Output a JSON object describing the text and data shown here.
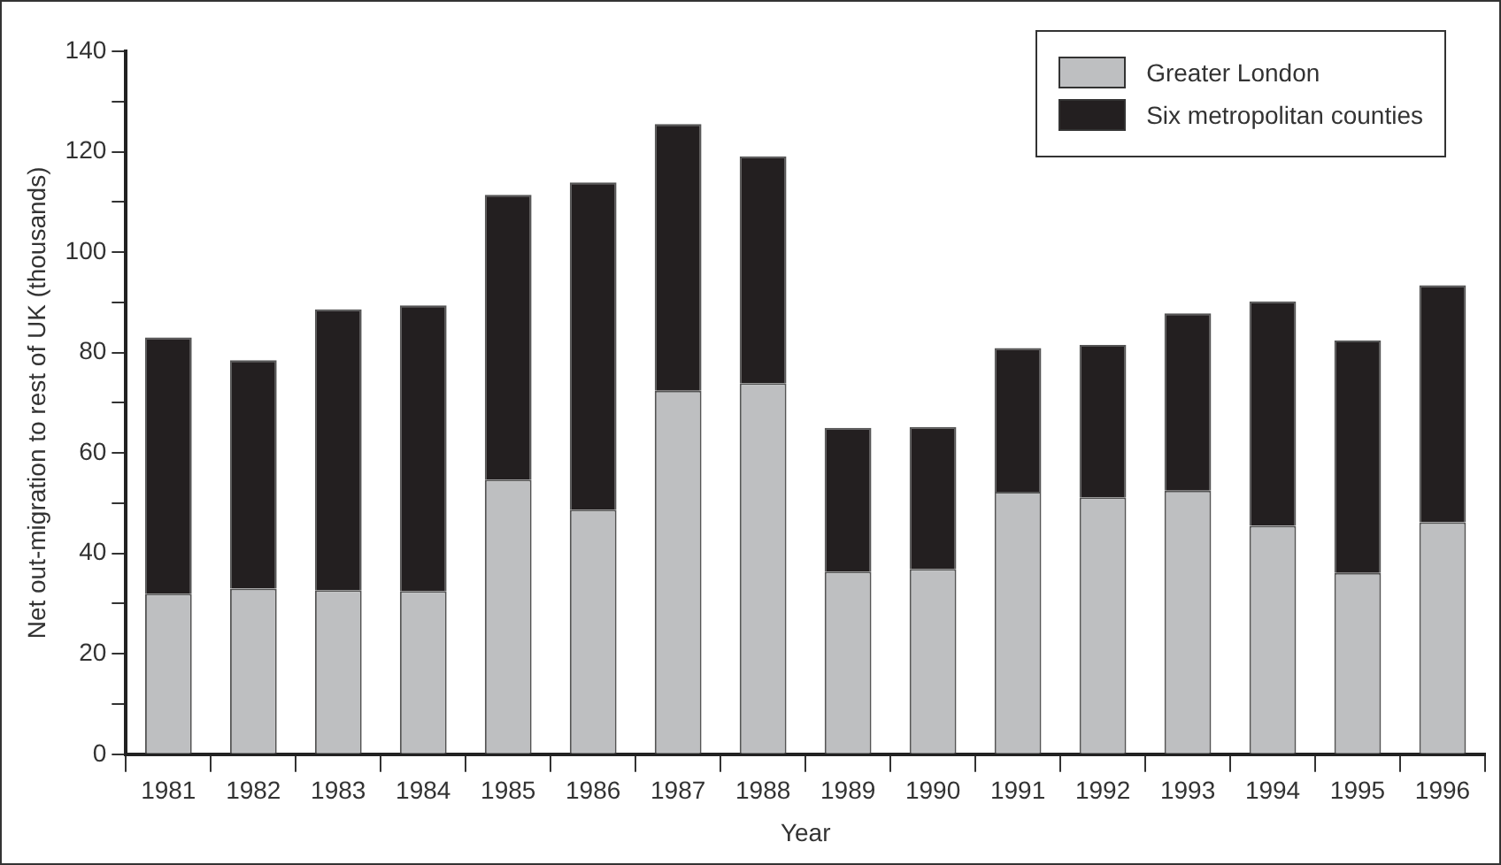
{
  "chart_data": {
    "type": "bar",
    "stacked": true,
    "xlabel": "Year",
    "ylabel": "Net out-migration to rest of UK (thousands)",
    "categories": [
      "1981",
      "1982",
      "1983",
      "1984",
      "1985",
      "1986",
      "1987",
      "1988",
      "1989",
      "1990",
      "1991",
      "1992",
      "1993",
      "1994",
      "1995",
      "1996"
    ],
    "series": [
      {
        "name": "Greater London",
        "color": "#bebfc1",
        "values": [
          32,
          33,
          32.7,
          32.5,
          54.7,
          48.7,
          72.4,
          73.9,
          36.4,
          36.9,
          52.3,
          51.2,
          52.5,
          45.5,
          36.1,
          46.2
        ]
      },
      {
        "name": "Six metropolitan counties",
        "color": "#231f20",
        "values": [
          51,
          45.5,
          55.9,
          56.9,
          56.7,
          65.2,
          53.1,
          45.2,
          28.6,
          28.3,
          28.6,
          30.3,
          35.3,
          44.7,
          46.3,
          47.2
        ]
      }
    ],
    "ylim": [
      0,
      140
    ],
    "yticks": [
      0,
      {
        "value": 10,
        "label": null
      },
      20,
      {
        "value": 30,
        "label": null
      },
      40,
      {
        "value": 50,
        "label": null
      },
      60,
      {
        "value": 70,
        "label": null
      },
      80,
      {
        "value": 90,
        "label": null
      },
      100,
      {
        "value": 110,
        "label": null
      },
      120,
      {
        "value": 130,
        "label": null
      },
      140
    ],
    "grid": false,
    "legend": "top right"
  }
}
